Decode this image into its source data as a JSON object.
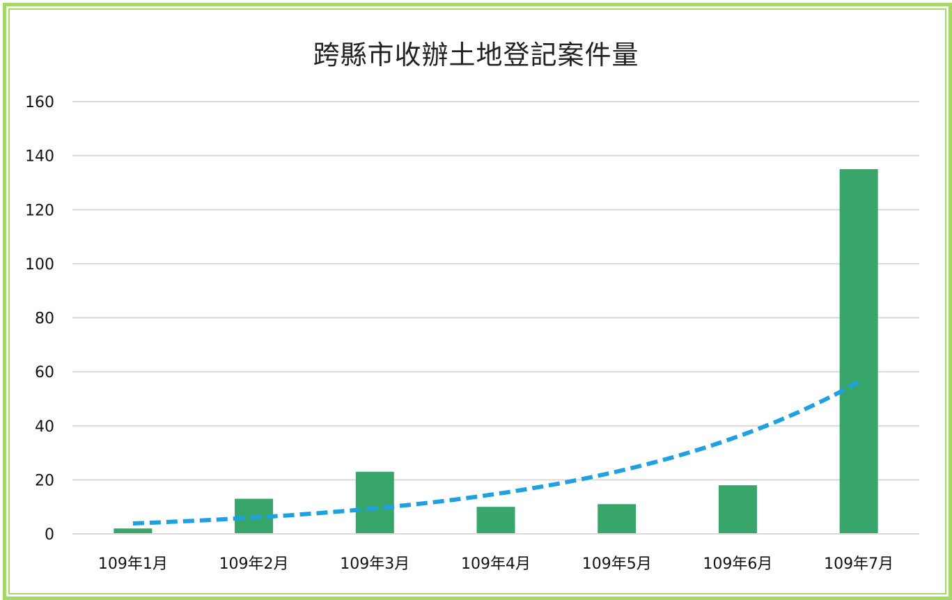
{
  "chart_data": {
    "type": "bar",
    "title": "跨縣市收辦土地登記案件量",
    "xlabel": "",
    "ylabel": "",
    "categories": [
      "109年1月",
      "109年2月",
      "109年3月",
      "109年4月",
      "109年5月",
      "109年6月",
      "109年7月"
    ],
    "series": [
      {
        "values": [
          2,
          13,
          23,
          10,
          11,
          18,
          135
        ],
        "color": "#38a66b"
      }
    ],
    "trendline": {
      "type": "exponential",
      "style": "dashed",
      "color": "#1fa0e0",
      "values": [
        4,
        6,
        9,
        15,
        23,
        36,
        57
      ]
    },
    "ylim": [
      0,
      160
    ],
    "yticks": [
      0,
      20,
      40,
      60,
      80,
      100,
      120,
      140,
      160
    ],
    "grid": true,
    "legend": "none"
  },
  "colors": {
    "border": "#a3d96a",
    "gridline": "#d9d9d9",
    "bar": "#38a66b",
    "trend": "#1fa0e0"
  }
}
